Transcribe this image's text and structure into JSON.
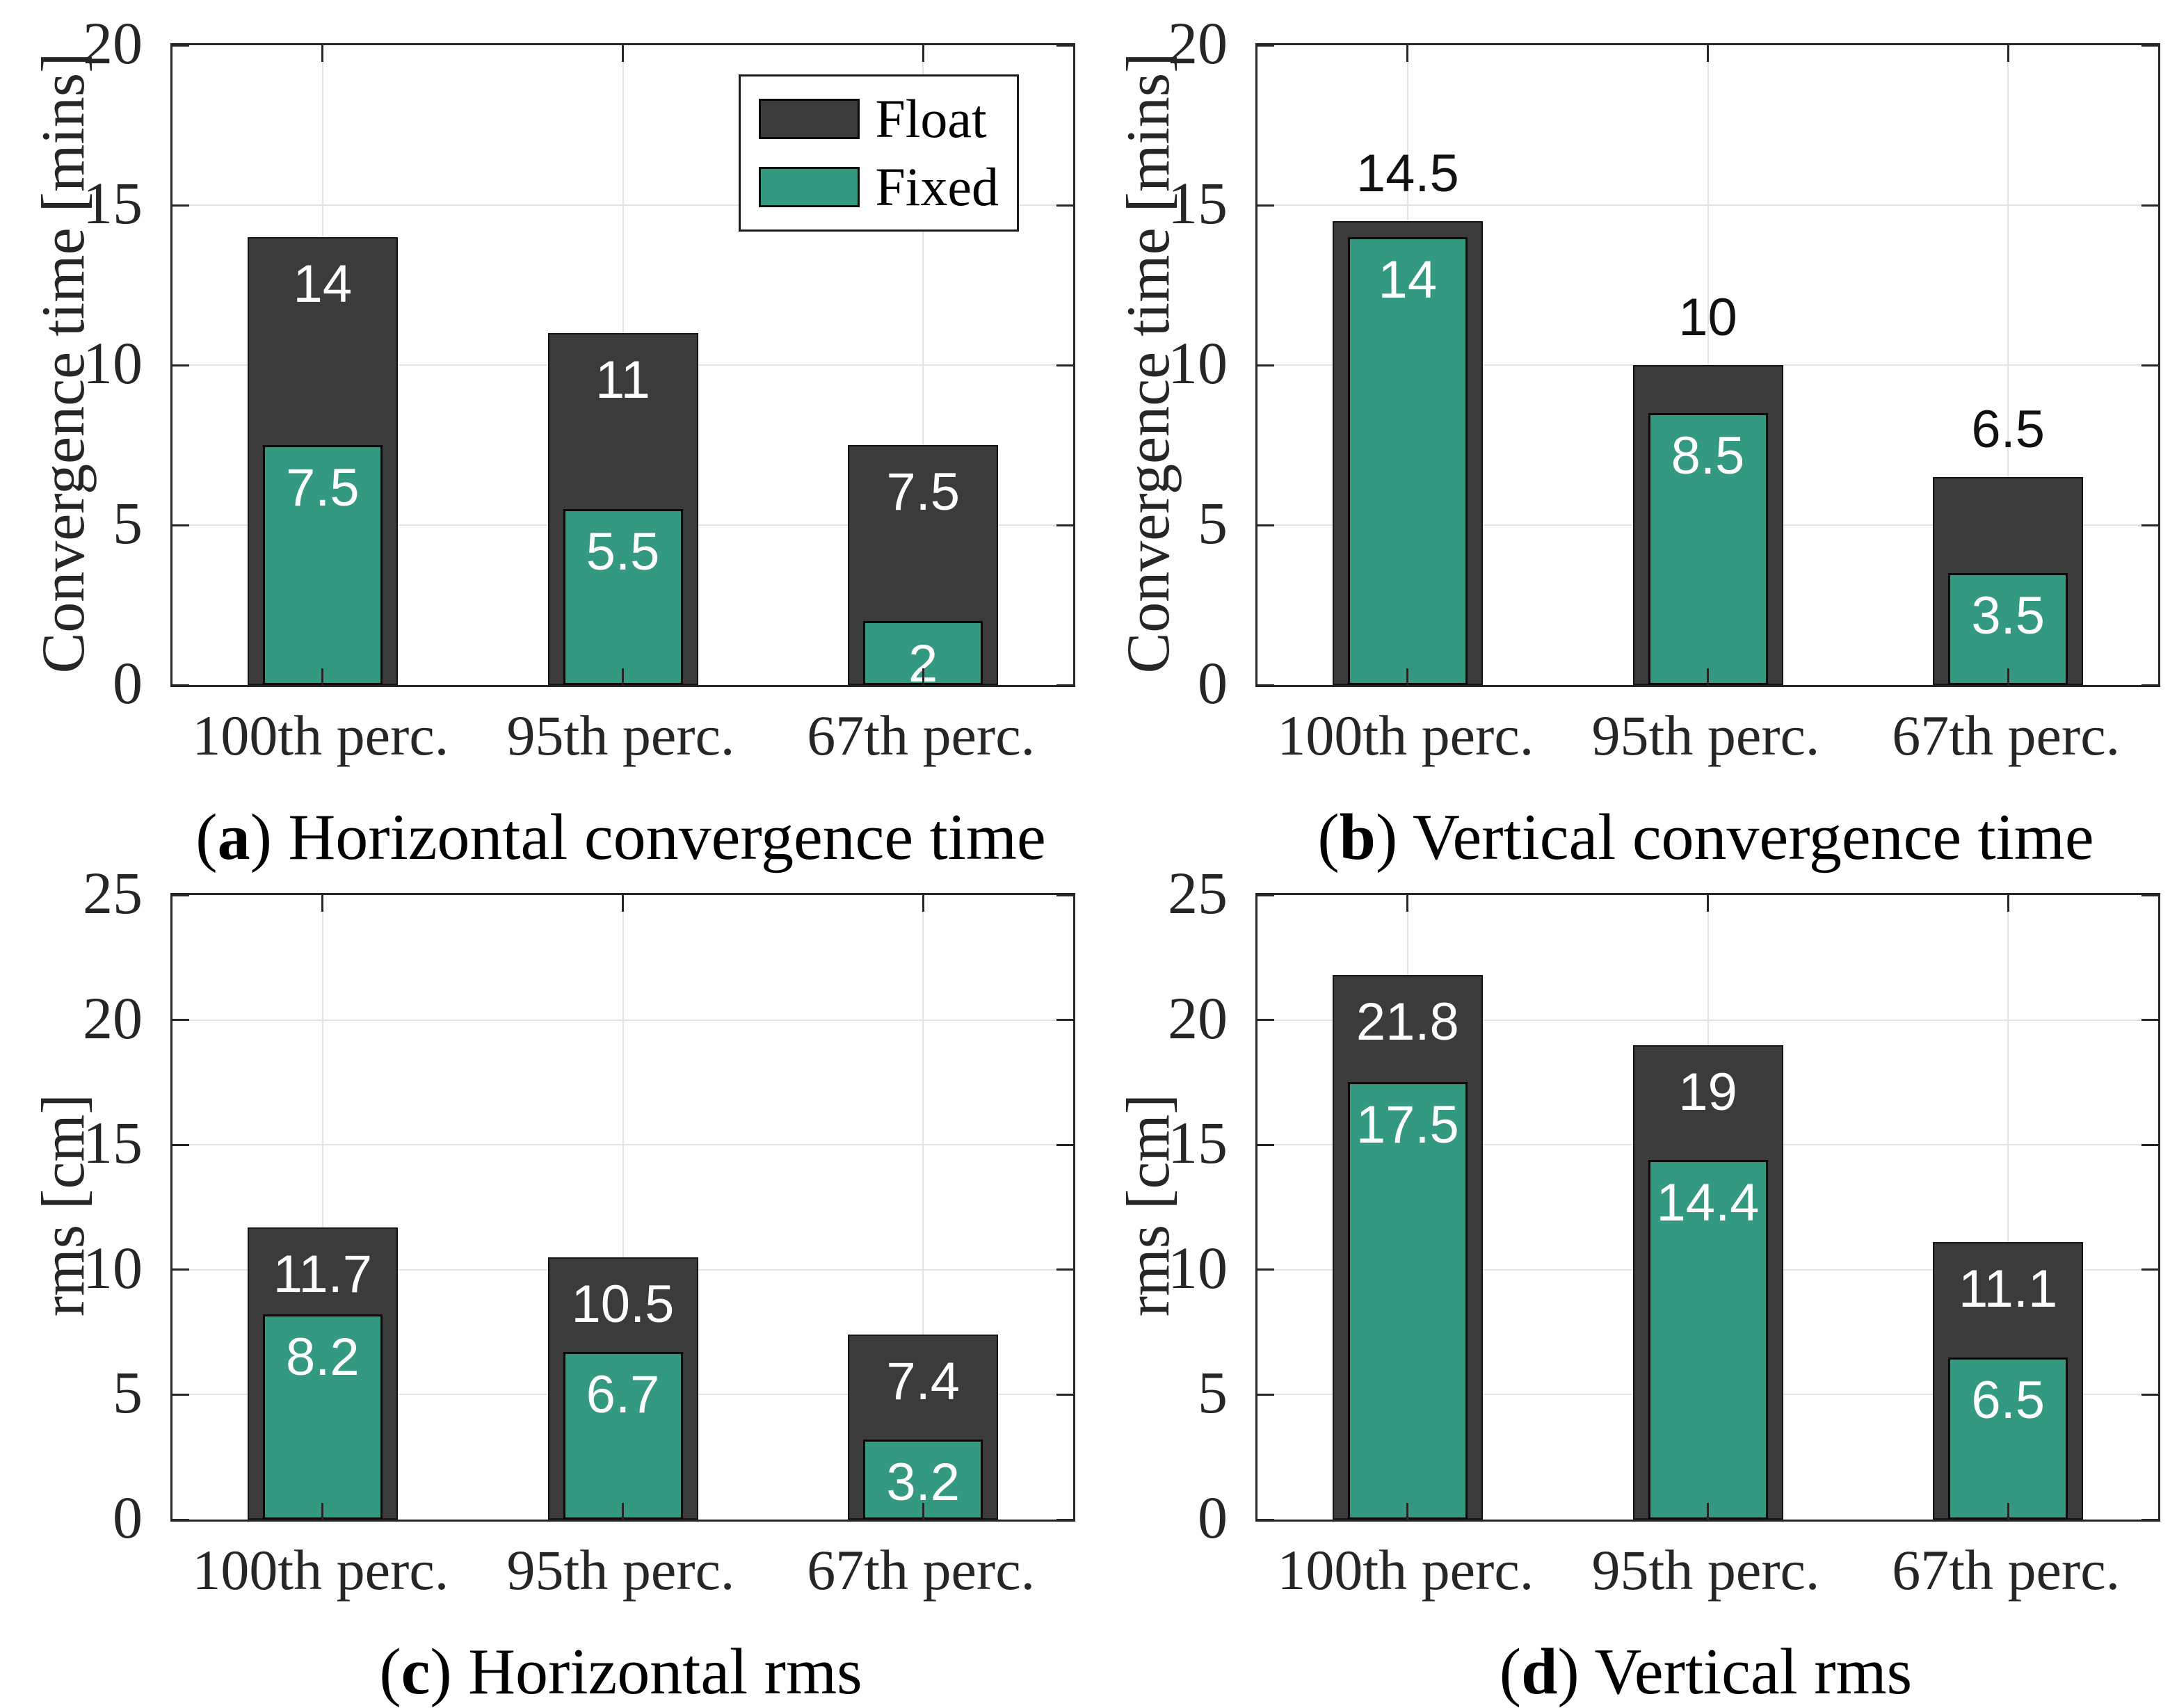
{
  "figure": {
    "background": "#ffffff",
    "colors": {
      "float_bar": "#3b3b3b",
      "fixed_bar": "#339980",
      "axis": "#262626",
      "gridline": "#e4e4e4",
      "bar_label_inside": "#ffffff",
      "bar_label_above": "#111111"
    },
    "legend": {
      "items": [
        {
          "label": "Float",
          "color": "#3b3b3b"
        },
        {
          "label": "Fixed",
          "color": "#339980"
        }
      ],
      "position": "top-right-of-subplot-a"
    }
  },
  "chart_data": [
    {
      "id": "a",
      "type": "bar",
      "caption_letter": "a",
      "caption": "Horizontal convergence time",
      "ylabel": "Convergence time [mins]",
      "ylim": [
        0,
        20
      ],
      "yticks": [
        0,
        5,
        10,
        15,
        20
      ],
      "grid": true,
      "categories": [
        "100th perc.",
        "95th perc.",
        "67th perc."
      ],
      "series": [
        {
          "name": "Float",
          "values": [
            14,
            11,
            7.5
          ],
          "labels": [
            "14",
            "11",
            "7.5"
          ]
        },
        {
          "name": "Fixed",
          "values": [
            7.5,
            5.5,
            2
          ],
          "labels": [
            "7.5",
            "5.5",
            "2"
          ]
        }
      ],
      "float_label_position": "inside",
      "show_legend": true
    },
    {
      "id": "b",
      "type": "bar",
      "caption_letter": "b",
      "caption": "Vertical convergence time",
      "ylabel": "Convergence time [mins]",
      "ylim": [
        0,
        20
      ],
      "yticks": [
        0,
        5,
        10,
        15,
        20
      ],
      "grid": true,
      "categories": [
        "100th perc.",
        "95th perc.",
        "67th perc."
      ],
      "series": [
        {
          "name": "Float",
          "values": [
            14.5,
            10,
            6.5
          ],
          "labels": [
            "14.5",
            "10",
            "6.5"
          ]
        },
        {
          "name": "Fixed",
          "values": [
            14,
            8.5,
            3.5
          ],
          "labels": [
            "14",
            "8.5",
            "3.5"
          ]
        }
      ],
      "float_label_position": "above",
      "show_legend": false
    },
    {
      "id": "c",
      "type": "bar",
      "caption_letter": "c",
      "caption": "Horizontal rms",
      "ylabel": "rms [cm]",
      "ylim": [
        0,
        25
      ],
      "yticks": [
        0,
        5,
        10,
        15,
        20,
        25
      ],
      "grid": true,
      "categories": [
        "100th perc.",
        "95th perc.",
        "67th perc."
      ],
      "series": [
        {
          "name": "Float",
          "values": [
            11.7,
            10.5,
            7.4
          ],
          "labels": [
            "11.7",
            "10.5",
            "7.4"
          ]
        },
        {
          "name": "Fixed",
          "values": [
            8.2,
            6.7,
            3.2
          ],
          "labels": [
            "8.2",
            "6.7",
            "3.2"
          ]
        }
      ],
      "float_label_position": "inside",
      "show_legend": false
    },
    {
      "id": "d",
      "type": "bar",
      "caption_letter": "d",
      "caption": "Vertical rms",
      "ylabel": "rms [cm]",
      "ylim": [
        0,
        25
      ],
      "yticks": [
        0,
        5,
        10,
        15,
        20,
        25
      ],
      "grid": true,
      "categories": [
        "100th perc.",
        "95th perc.",
        "67th perc."
      ],
      "series": [
        {
          "name": "Float",
          "values": [
            21.8,
            19,
            11.1
          ],
          "labels": [
            "21.8",
            "19",
            "11.1"
          ]
        },
        {
          "name": "Fixed",
          "values": [
            17.5,
            14.4,
            6.5
          ],
          "labels": [
            "17.5",
            "14.4",
            "6.5"
          ]
        }
      ],
      "float_label_position": "inside",
      "show_legend": false
    }
  ]
}
